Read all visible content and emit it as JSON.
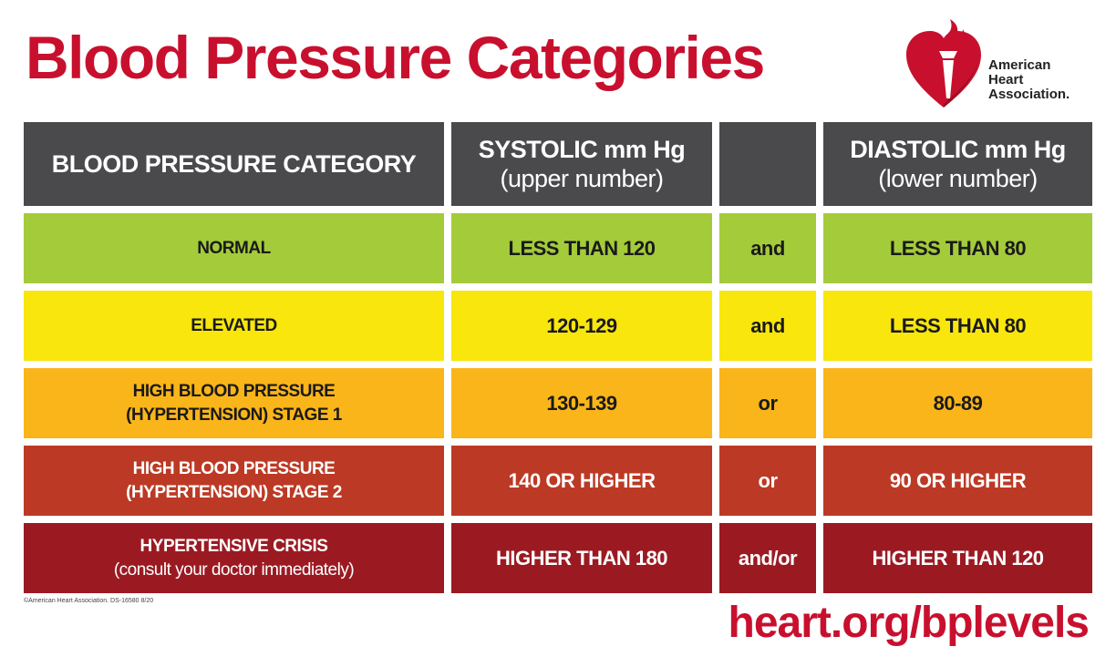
{
  "title": "Blood Pressure Categories",
  "logo": {
    "icon": "heart-torch-icon",
    "line1": "American",
    "line2": "Heart",
    "line3": "Association."
  },
  "colors": {
    "brand_red": "#c8102e",
    "header_gray": "#4a4a4c",
    "normal": "#a4cb3a",
    "elevated": "#f8e60c",
    "stage1": "#fab51a",
    "stage2": "#bc3a25",
    "crisis": "#9b1a22"
  },
  "table": {
    "headers": {
      "category": "BLOOD PRESSURE CATEGORY",
      "systolic": "SYSTOLIC mm Hg",
      "systolic_sub": "(upper number)",
      "connector": "",
      "diastolic": "DIASTOLIC mm Hg",
      "diastolic_sub": "(lower number)"
    },
    "rows": [
      {
        "category_line1": "NORMAL",
        "category_line2": "",
        "systolic": "LESS THAN 120",
        "connector": "and",
        "diastolic": "LESS THAN 80"
      },
      {
        "category_line1": "ELEVATED",
        "category_line2": "",
        "systolic": "120-129",
        "connector": "and",
        "diastolic": "LESS THAN 80"
      },
      {
        "category_line1": "HIGH BLOOD PRESSURE",
        "category_line2": "(HYPERTENSION) STAGE 1",
        "systolic": "130-139",
        "connector": "or",
        "diastolic": "80-89"
      },
      {
        "category_line1": "HIGH BLOOD PRESSURE",
        "category_line2": "(HYPERTENSION) STAGE 2",
        "systolic": "140 OR HIGHER",
        "connector": "or",
        "diastolic": "90 OR HIGHER"
      },
      {
        "category_line1": "HYPERTENSIVE CRISIS",
        "category_line2": "(consult your doctor immediately)",
        "systolic": "HIGHER THAN 180",
        "connector": "and/or",
        "diastolic": "HIGHER THAN 120"
      }
    ]
  },
  "copyright": "©American Heart Association. DS-16580 8/20",
  "url": "heart.org/bplevels"
}
